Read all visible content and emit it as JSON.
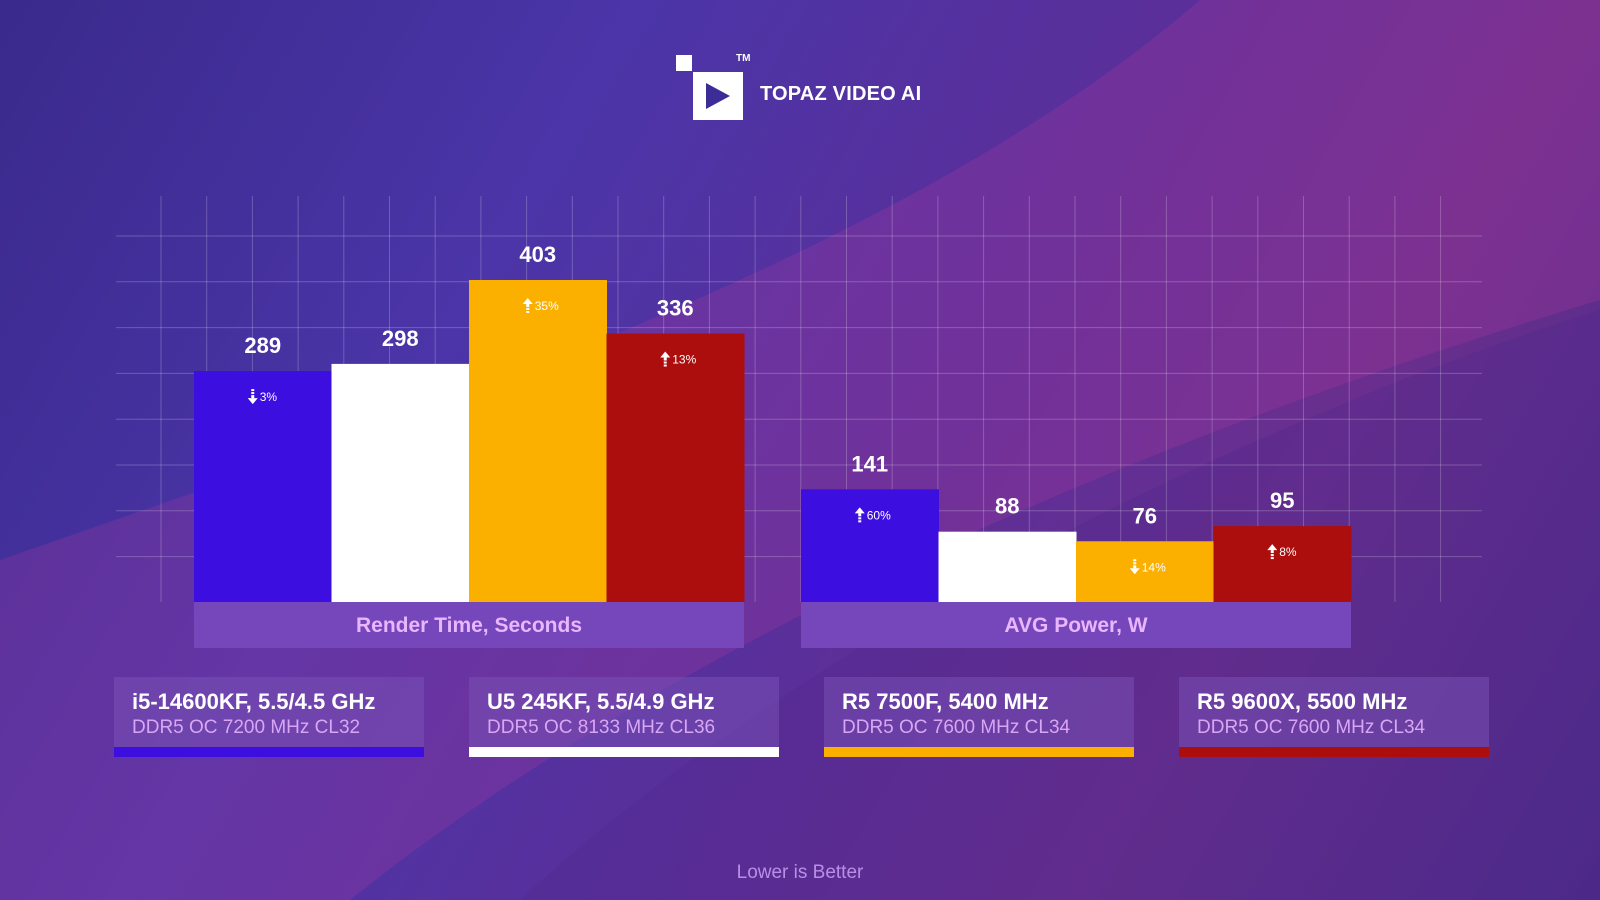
{
  "brand": {
    "name": "TOPAZ VIDEO AI",
    "trademark": "TM"
  },
  "colors": {
    "blue": "#3d0ee0",
    "white": "#ffffff",
    "yellow": "#fbb000",
    "red": "#ac0d0d",
    "groupbar": "#7547ba"
  },
  "chart_data": {
    "type": "bar",
    "categories": [
      "Render Time, Seconds",
      "AVG Power, W"
    ],
    "series": [
      {
        "name": "i5-14600KF, 5.5/4.5 GHz",
        "values": [
          289,
          141
        ],
        "deltas": [
          {
            "dir": "down",
            "text": "3%"
          },
          {
            "dir": "up",
            "text": "60%"
          }
        ]
      },
      {
        "name": "U5 245KF, 5.5/4.9 GHz",
        "values": [
          298,
          88
        ],
        "deltas": [
          null,
          null
        ]
      },
      {
        "name": "R5 7500F, 5400 MHz",
        "values": [
          403,
          76
        ],
        "deltas": [
          {
            "dir": "up",
            "text": "35%"
          },
          {
            "dir": "down",
            "text": "14%"
          }
        ]
      },
      {
        "name": "R5 9600X, 5500 MHz",
        "values": [
          336,
          95
        ],
        "deltas": [
          {
            "dir": "up",
            "text": "13%"
          },
          {
            "dir": "up",
            "text": "8%"
          }
        ]
      }
    ],
    "note": "Lower is Better",
    "grid": true,
    "legend_position": "bottom"
  },
  "legend": [
    {
      "title": "i5-14600KF, 5.5/4.5 GHz",
      "subtitle": "DDR5 OC 7200 MHz CL32",
      "color": "#3d0ee0"
    },
    {
      "title": "U5 245KF, 5.5/4.9 GHz",
      "subtitle": "DDR5 OC 8133 MHz CL36",
      "color": "#ffffff"
    },
    {
      "title": "R5 7500F, 5400 MHz",
      "subtitle": "DDR5 OC 7600 MHz CL34",
      "color": "#fbb000"
    },
    {
      "title": "R5 9600X, 5500 MHz",
      "subtitle": "DDR5 OC 7600 MHz CL34",
      "color": "#ac0d0d"
    }
  ]
}
